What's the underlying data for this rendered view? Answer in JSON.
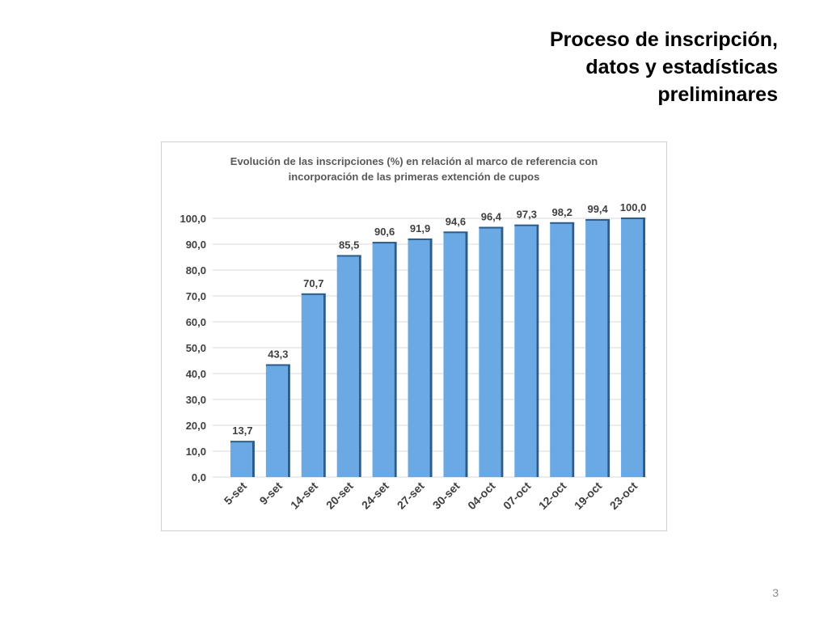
{
  "slide": {
    "title_lines": [
      "Proceso de inscripción,",
      "datos y estadísticas",
      "preliminares"
    ],
    "page_number": "3"
  },
  "colors": {
    "bar_fill": "#6aa9e4",
    "bar_side": "#2b5c8a",
    "gridline": "#d9d9d9",
    "label_text": "#404040"
  },
  "chart_data": {
    "type": "bar",
    "title_lines": [
      "Evolución de las inscripciones (%) en relación al marco de referencia con",
      "incorporación de las primeras extención de cupos"
    ],
    "categories": [
      "5-set",
      "9-set",
      "14-set",
      "20-set",
      "24-set",
      "27-set",
      "30-set",
      "04-oct",
      "07-oct",
      "12-oct",
      "19-oct",
      "23-oct"
    ],
    "values": [
      13.7,
      43.3,
      70.7,
      85.5,
      90.6,
      91.9,
      94.6,
      96.4,
      97.3,
      98.2,
      99.4,
      100.0
    ],
    "value_labels": [
      "13,7",
      "43,3",
      "70,7",
      "85,5",
      "90,6",
      "91,9",
      "94,6",
      "96,4",
      "97,3",
      "98,2",
      "99,4",
      "100,0"
    ],
    "y_ticks": [
      0,
      10,
      20,
      30,
      40,
      50,
      60,
      70,
      80,
      90,
      100
    ],
    "y_tick_labels": [
      "0,0",
      "10,0",
      "20,0",
      "30,0",
      "40,0",
      "50,0",
      "60,0",
      "70,0",
      "80,0",
      "90,0",
      "100,0"
    ],
    "ylim": [
      0,
      100
    ],
    "grid": true,
    "legend": "none"
  }
}
